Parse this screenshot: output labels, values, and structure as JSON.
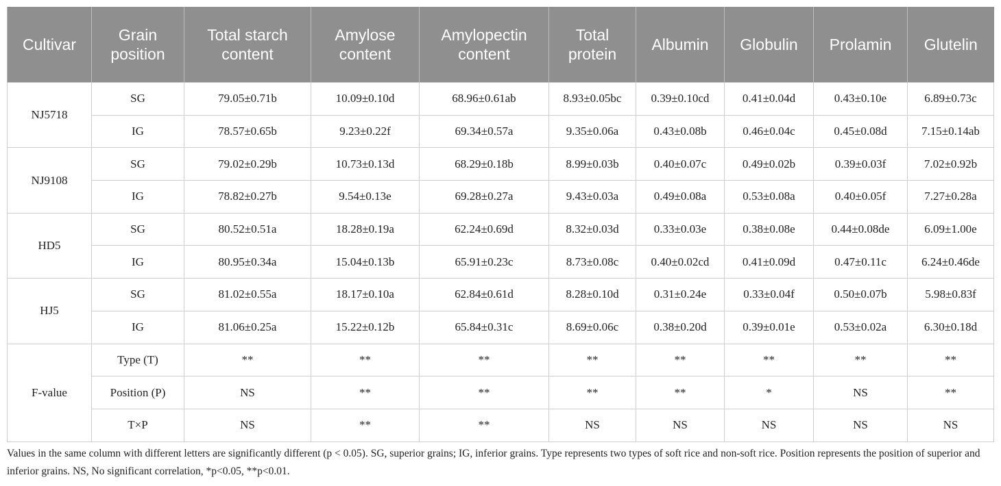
{
  "table": {
    "headers": [
      "Cultivar",
      "Grain position",
      "Total starch content",
      "Amylose content",
      "Amylopectin content",
      "Total protein",
      "Albumin",
      "Globulin",
      "Prolamin",
      "Glutelin"
    ],
    "groups": [
      {
        "label": "NJ5718",
        "rows": [
          [
            "SG",
            "79.05±0.71b",
            "10.09±0.10d",
            "68.96±0.61ab",
            "8.93±0.05bc",
            "0.39±0.10cd",
            "0.41±0.04d",
            "0.43±0.10e",
            "6.89±0.73c"
          ],
          [
            "IG",
            "78.57±0.65b",
            "9.23±0.22f",
            "69.34±0.57a",
            "9.35±0.06a",
            "0.43±0.08b",
            "0.46±0.04c",
            "0.45±0.08d",
            "7.15±0.14ab"
          ]
        ]
      },
      {
        "label": "NJ9108",
        "rows": [
          [
            "SG",
            "79.02±0.29b",
            "10.73±0.13d",
            "68.29±0.18b",
            "8.99±0.03b",
            "0.40±0.07c",
            "0.49±0.02b",
            "0.39±0.03f",
            "7.02±0.92b"
          ],
          [
            "IG",
            "78.82±0.27b",
            "9.54±0.13e",
            "69.28±0.27a",
            "9.43±0.03a",
            "0.49±0.08a",
            "0.53±0.08a",
            "0.40±0.05f",
            "7.27±0.28a"
          ]
        ]
      },
      {
        "label": "HD5",
        "rows": [
          [
            "SG",
            "80.52±0.51a",
            "18.28±0.19a",
            "62.24±0.69d",
            "8.32±0.03d",
            "0.33±0.03e",
            "0.38±0.08e",
            "0.44±0.08de",
            "6.09±1.00e"
          ],
          [
            "IG",
            "80.95±0.34a",
            "15.04±0.13b",
            "65.91±0.23c",
            "8.73±0.08c",
            "0.40±0.02cd",
            "0.41±0.09d",
            "0.47±0.11c",
            "6.24±0.46de"
          ]
        ]
      },
      {
        "label": "HJ5",
        "rows": [
          [
            "SG",
            "81.02±0.55a",
            "18.17±0.10a",
            "62.84±0.61d",
            "8.28±0.10d",
            "0.31±0.24e",
            "0.33±0.04f",
            "0.50±0.07b",
            "5.98±0.83f"
          ],
          [
            "IG",
            "81.06±0.25a",
            "15.22±0.12b",
            "65.84±0.31c",
            "8.69±0.06c",
            "0.38±0.20d",
            "0.39±0.01e",
            "0.53±0.02a",
            "6.30±0.18d"
          ]
        ]
      },
      {
        "label": "F-value",
        "rows": [
          [
            "Type (T)",
            "**",
            "**",
            "**",
            "**",
            "**",
            "**",
            "**",
            "**"
          ],
          [
            "Position (P)",
            "NS",
            "**",
            "**",
            "**",
            "**",
            "*",
            "NS",
            "**"
          ],
          [
            "T×P",
            "NS",
            "**",
            "**",
            "NS",
            "NS",
            "NS",
            "NS",
            "NS"
          ]
        ]
      }
    ],
    "footnote": "Values in the same column with different letters are significantly different (p < 0.05). SG, superior grains; IG, inferior grains. Type represents two types of soft rice and non-soft rice. Position represents the position of superior and inferior grains. NS, No significant correlation, *p<0.05, **p<0.01."
  }
}
